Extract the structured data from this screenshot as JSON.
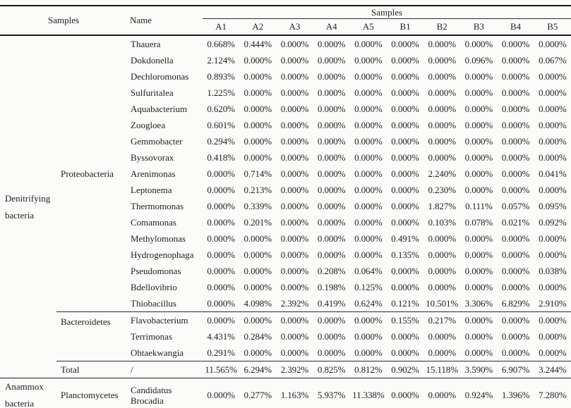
{
  "table": {
    "header": {
      "samples_label": "Samples",
      "name_label": "Name",
      "samples_group_label": "Samples",
      "sample_columns": [
        "A1",
        "A2",
        "A3",
        "A4",
        "A5",
        "B1",
        "B2",
        "B3",
        "B4",
        "B5"
      ]
    },
    "body_rows": [
      {
        "lead_cells": [
          {
            "text": "Denitrifying bacteria",
            "rowspan": 21,
            "kind": "group",
            "name": "group-denitrifying-bacteria"
          },
          {
            "text": "Proteobacteria",
            "rowspan": 17,
            "kind": "lead",
            "name": "phylum-proteobacteria"
          }
        ],
        "name": "Thauera",
        "values": [
          "0.668%",
          "0.444%",
          "0.000%",
          "0.000%",
          "0.000%",
          "0.000%",
          "0.000%",
          "0.000%",
          "0.000%",
          "0.000%"
        ]
      },
      {
        "name": "Dokdonella",
        "values": [
          "2.124%",
          "0.000%",
          "0.000%",
          "0.000%",
          "0.000%",
          "0.000%",
          "0.000%",
          "0.096%",
          "0.000%",
          "0.067%"
        ]
      },
      {
        "name": "Dechloromonas",
        "values": [
          "0.893%",
          "0.000%",
          "0.000%",
          "0.000%",
          "0.000%",
          "0.000%",
          "0.000%",
          "0.000%",
          "0.000%",
          "0.000%"
        ]
      },
      {
        "name": "Sulfuritalea",
        "values": [
          "1.225%",
          "0.000%",
          "0.000%",
          "0.000%",
          "0.000%",
          "0.000%",
          "0.000%",
          "0.000%",
          "0.000%",
          "0.000%"
        ]
      },
      {
        "name": "Aquabacterium",
        "values": [
          "0.620%",
          "0.000%",
          "0.000%",
          "0.000%",
          "0.000%",
          "0.000%",
          "0.000%",
          "0.000%",
          "0.000%",
          "0.000%"
        ]
      },
      {
        "name": "Zoogloea",
        "values": [
          "0.601%",
          "0.000%",
          "0.000%",
          "0.000%",
          "0.000%",
          "0.000%",
          "0.000%",
          "0.000%",
          "0.000%",
          "0.000%"
        ]
      },
      {
        "name": "Gemmobacter",
        "values": [
          "0.294%",
          "0.000%",
          "0.000%",
          "0.000%",
          "0.000%",
          "0.000%",
          "0.000%",
          "0.000%",
          "0.000%",
          "0.000%"
        ]
      },
      {
        "name": "Byssovorax",
        "values": [
          "0.418%",
          "0.000%",
          "0.000%",
          "0.000%",
          "0.000%",
          "0.000%",
          "0.000%",
          "0.000%",
          "0.000%",
          "0.000%"
        ]
      },
      {
        "name": "Arenimonas",
        "values": [
          "0.000%",
          "0.714%",
          "0.000%",
          "0.000%",
          "0.000%",
          "0.000%",
          "2.240%",
          "0.000%",
          "0.000%",
          "0.041%"
        ]
      },
      {
        "name": "Leptonema",
        "values": [
          "0.000%",
          "0.213%",
          "0.000%",
          "0.000%",
          "0.000%",
          "0.000%",
          "0.230%",
          "0.000%",
          "0.000%",
          "0.000%"
        ]
      },
      {
        "name": "Thermomonas",
        "values": [
          "0.000%",
          "0.339%",
          "0.000%",
          "0.000%",
          "0.000%",
          "0.000%",
          "1.827%",
          "0.111%",
          "0.057%",
          "0.095%"
        ]
      },
      {
        "name": "Comamonas",
        "values": [
          "0.000%",
          "0.201%",
          "0.000%",
          "0.000%",
          "0.000%",
          "0.000%",
          "0.103%",
          "0.078%",
          "0.021%",
          "0.092%"
        ]
      },
      {
        "name": "Methylomonas",
        "values": [
          "0.000%",
          "0.000%",
          "0.000%",
          "0.000%",
          "0.000%",
          "0.491%",
          "0.000%",
          "0.000%",
          "0.000%",
          "0.000%"
        ]
      },
      {
        "name": "Hydrogenophaga",
        "values": [
          "0.000%",
          "0.000%",
          "0.000%",
          "0.000%",
          "0.000%",
          "0.135%",
          "0.000%",
          "0.000%",
          "0.000%",
          "0.000%"
        ]
      },
      {
        "name": "Pseudomonas",
        "values": [
          "0.000%",
          "0.000%",
          "0.000%",
          "0.208%",
          "0.064%",
          "0.000%",
          "0.000%",
          "0.000%",
          "0.000%",
          "0.038%"
        ]
      },
      {
        "name": "Bdellovibrio",
        "values": [
          "0.000%",
          "0.000%",
          "0.000%",
          "0.198%",
          "0.125%",
          "0.000%",
          "0.000%",
          "0.000%",
          "0.000%",
          "0.000%"
        ]
      },
      {
        "name": "Thiobacillus",
        "values": [
          "0.000%",
          "4.098%",
          "2.392%",
          "0.419%",
          "0.624%",
          "0.121%",
          "10.501%",
          "3.306%",
          "6.829%",
          "2.910%"
        ]
      },
      {
        "lead_cells": [
          {
            "text": "Bacteroidetes",
            "rowspan": 3,
            "kind": "lead",
            "valign_top": true,
            "name": "phylum-bacteroidetes"
          }
        ],
        "divider": "sub",
        "name": "Flavobacterium",
        "values": [
          "0.000%",
          "0.000%",
          "0.000%",
          "0.000%",
          "0.000%",
          "0.155%",
          "0.217%",
          "0.000%",
          "0.000%",
          "0.000%"
        ]
      },
      {
        "name": "Terrimonas",
        "values": [
          "4.431%",
          "0.284%",
          "0.000%",
          "0.000%",
          "0.000%",
          "0.000%",
          "0.000%",
          "0.000%",
          "0.000%",
          "0.000%"
        ]
      },
      {
        "name": "Ohtaekwangia",
        "values": [
          "0.291%",
          "0.000%",
          "0.000%",
          "0.000%",
          "0.000%",
          "0.000%",
          "0.000%",
          "0.000%",
          "0.000%",
          "0.000%"
        ]
      },
      {
        "lead_cells": [
          {
            "text": "Total",
            "rowspan": 1,
            "kind": "lead",
            "name": "total-label"
          }
        ],
        "divider": "sub",
        "name": "/",
        "values": [
          "11.565%",
          "6.294%",
          "2.392%",
          "0.825%",
          "0.812%",
          "0.902%",
          "15.118%",
          "3.590%",
          "6.907%",
          "3.244%"
        ]
      },
      {
        "lead_cells": [
          {
            "text": "Anammox bacteria",
            "rowspan": 1,
            "kind": "group",
            "name": "group-anammox-bacteria"
          },
          {
            "text": "Planctomycetes",
            "rowspan": 1,
            "kind": "lead",
            "name": "phylum-planctomycetes"
          }
        ],
        "divider": "full",
        "tall": true,
        "name": "Candidatus Brocadia",
        "values": [
          "0.000%",
          "0.277%",
          "1.163%",
          "5.937%",
          "11.338%",
          "0.000%",
          "0.000%",
          "0.924%",
          "1.396%",
          "7.280%"
        ]
      }
    ]
  }
}
